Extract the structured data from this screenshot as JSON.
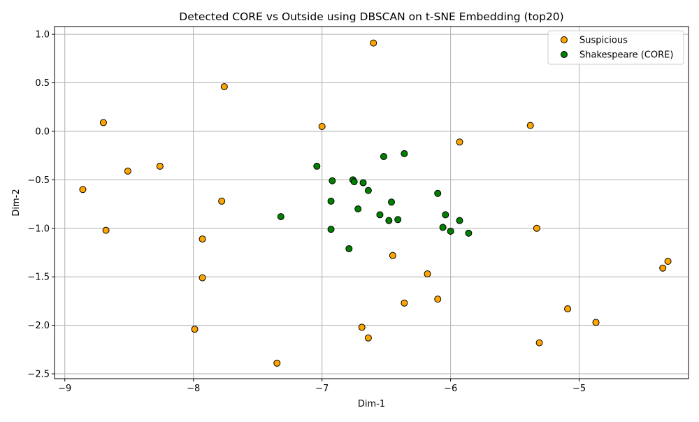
{
  "chart_data": {
    "type": "scatter",
    "title": "Detected CORE vs Outside using DBSCAN on t-SNE Embedding (top20)",
    "xlabel": "Dim-1",
    "ylabel": "Dim-2",
    "xlim": [
      -9.08,
      -4.15
    ],
    "ylim": [
      -2.55,
      1.08
    ],
    "xticks": [
      -9,
      -8,
      -7,
      -6,
      -5
    ],
    "yticks": [
      -2.5,
      -2.0,
      -1.5,
      -1.0,
      -0.5,
      0.0,
      0.5,
      1.0
    ],
    "xtick_labels": [
      "−9",
      "−8",
      "−7",
      "−6",
      "−5"
    ],
    "ytick_labels": [
      "−2.5",
      "−2.0",
      "−1.5",
      "−1.0",
      "−0.5",
      "0.0",
      "0.5",
      "1.0"
    ],
    "grid": true,
    "legend_position": "top-right",
    "series": [
      {
        "name": "Suspicious",
        "color": "#FFA500",
        "edge_color": "#000000",
        "x": [
          -6.6,
          -7.76,
          -8.7,
          -7.0,
          -5.38,
          -5.93,
          -8.26,
          -8.51,
          -8.86,
          -7.78,
          -8.68,
          -5.33,
          -7.93,
          -6.45,
          -4.31,
          -4.35,
          -7.93,
          -6.18,
          -6.36,
          -6.1,
          -5.09,
          -4.87,
          -7.99,
          -6.69,
          -6.64,
          -5.31,
          -7.35
        ],
        "y": [
          0.91,
          0.46,
          0.09,
          0.05,
          0.06,
          -0.11,
          -0.36,
          -0.41,
          -0.6,
          -0.72,
          -1.02,
          -1.0,
          -1.11,
          -1.28,
          -1.34,
          -1.41,
          -1.51,
          -1.47,
          -1.77,
          -1.73,
          -1.83,
          -1.97,
          -2.04,
          -2.02,
          -2.13,
          -2.18,
          -2.39
        ]
      },
      {
        "name": "Shakespeare (CORE)",
        "color": "#008000",
        "edge_color": "#000000",
        "x": [
          -6.36,
          -6.52,
          -7.04,
          -6.92,
          -6.76,
          -6.75,
          -6.68,
          -6.64,
          -6.46,
          -6.93,
          -6.72,
          -6.1,
          -6.55,
          -6.48,
          -6.41,
          -6.04,
          -5.93,
          -6.06,
          -6.0,
          -5.86,
          -6.93,
          -7.32,
          -6.79
        ],
        "y": [
          -0.23,
          -0.26,
          -0.36,
          -0.51,
          -0.5,
          -0.52,
          -0.53,
          -0.61,
          -0.73,
          -0.72,
          -0.8,
          -0.64,
          -0.86,
          -0.92,
          -0.91,
          -0.86,
          -0.92,
          -0.99,
          -1.03,
          -1.05,
          -1.01,
          -0.88,
          -1.21
        ]
      }
    ]
  }
}
